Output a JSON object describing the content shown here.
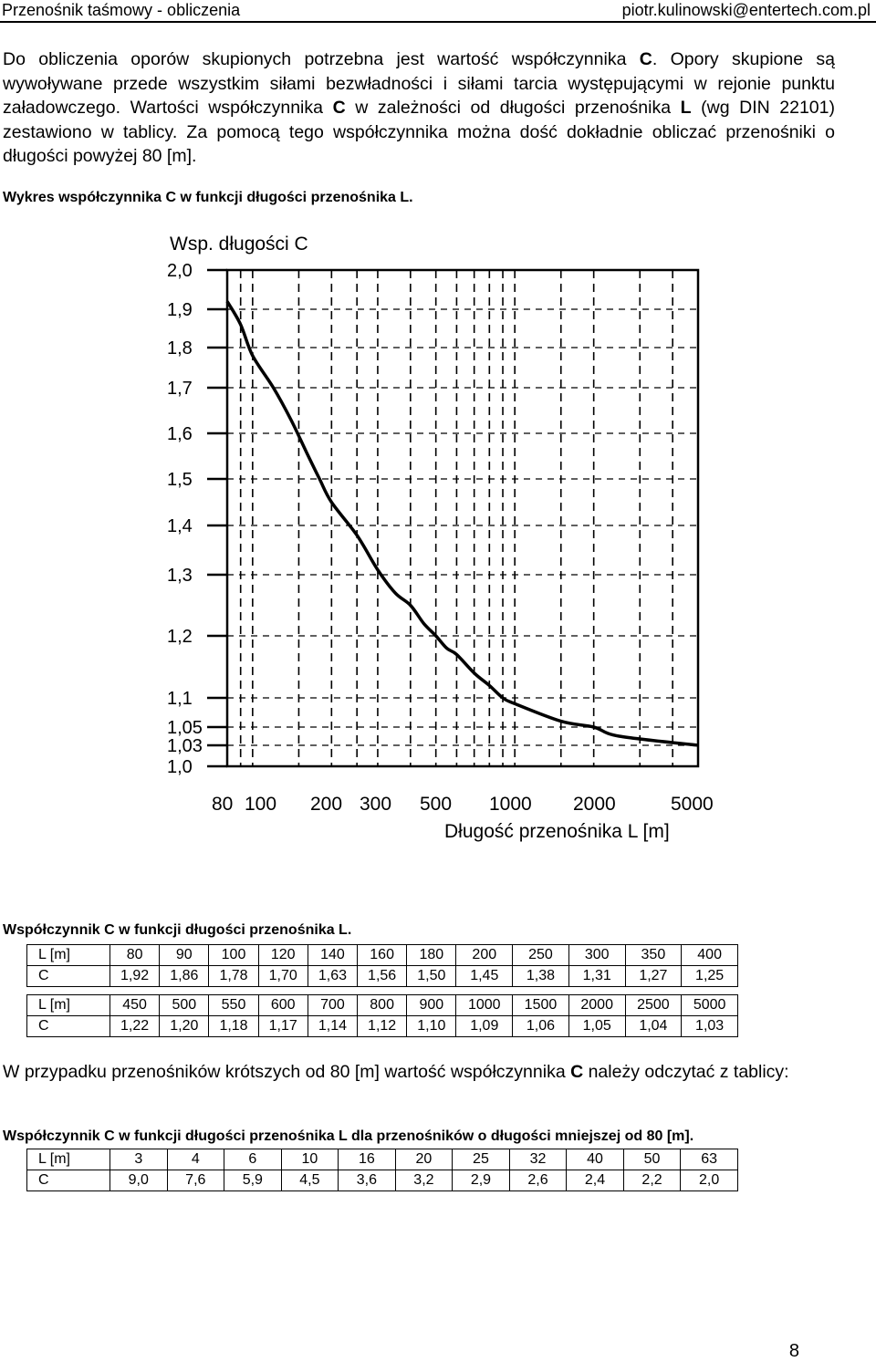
{
  "header": {
    "left": "Przenośnik taśmowy - obliczenia",
    "right": "piotr.kulinowski@entertech.com.pl"
  },
  "intro": {
    "s1": "Do obliczenia oporów skupionych potrzebna jest wartość współczynnika ",
    "c1": "C",
    "s2": ". Opory skupione są wywoływane przede wszystkim siłami bezwładności i siłami tarcia występującymi w rejonie punktu załadowczego. Wartości współczynnika ",
    "c2": "C",
    "s3": " w zależności od długości przenośnika ",
    "l1": "L",
    "s4": " (wg DIN 22101) zestawiono w tablicy. Za pomocą tego współczynnika można dość dokładnie obliczać przenośniki o długości powyżej 80 [m]."
  },
  "chart_caption": "Wykres współczynnika C w funkcji długości przenośnika L.",
  "chart_data": {
    "type": "line",
    "ylabel": "Wsp. długości C",
    "xlabel": "Długość przenośnika L [m]",
    "x_scale": "log",
    "xlim": [
      80,
      5000
    ],
    "ylim": [
      1.0,
      2.0
    ],
    "y_ticks": [
      "2,0",
      "1,9",
      "1,8",
      "1,7",
      "1,6",
      "1,5",
      "1,4",
      "1,3",
      "1,2",
      "1,1",
      "1,05",
      "1,03",
      "1,0"
    ],
    "y_tick_values": [
      2.0,
      1.9,
      1.8,
      1.7,
      1.6,
      1.5,
      1.4,
      1.3,
      1.2,
      1.1,
      1.05,
      1.03,
      1.0
    ],
    "x_ticks": [
      "80",
      "100",
      "200",
      "300",
      "500",
      "1000",
      "2000",
      "5000"
    ],
    "x_tick_values": [
      80,
      100,
      200,
      300,
      500,
      1000,
      2000,
      5000
    ],
    "grid": "dashed",
    "x": [
      80,
      90,
      100,
      120,
      140,
      160,
      180,
      200,
      250,
      300,
      350,
      400,
      450,
      500,
      550,
      600,
      700,
      800,
      900,
      1000,
      1500,
      2000,
      2500,
      5000
    ],
    "y": [
      1.92,
      1.86,
      1.78,
      1.7,
      1.63,
      1.56,
      1.5,
      1.45,
      1.38,
      1.31,
      1.27,
      1.25,
      1.22,
      1.2,
      1.18,
      1.17,
      1.14,
      1.12,
      1.1,
      1.09,
      1.06,
      1.05,
      1.04,
      1.03
    ]
  },
  "table1": {
    "caption": "Współczynnik C w funkcji długości przenośnika L.",
    "rows": [
      [
        "L [m]",
        "80",
        "90",
        "100",
        "120",
        "140",
        "160",
        "180",
        "200",
        "250",
        "300",
        "350",
        "400"
      ],
      [
        "C",
        "1,92",
        "1,86",
        "1,78",
        "1,70",
        "1,63",
        "1,56",
        "1,50",
        "1,45",
        "1,38",
        "1,31",
        "1,27",
        "1,25"
      ],
      [
        "L [m]",
        "450",
        "500",
        "550",
        "600",
        "700",
        "800",
        "900",
        "1000",
        "1500",
        "2000",
        "2500",
        "5000"
      ],
      [
        "C",
        "1,22",
        "1,20",
        "1,18",
        "1,17",
        "1,14",
        "1,12",
        "1,10",
        "1,09",
        "1,06",
        "1,05",
        "1,04",
        "1,03"
      ]
    ]
  },
  "para2": {
    "s1": "W przypadku przenośników krótszych od 80 [m] wartość współczynnika ",
    "c1": "C",
    "s2": " należy odczytać z tablicy:"
  },
  "table2": {
    "caption": "Współczynnik C w funkcji długości przenośnika L dla przenośników o długości mniejszej od 80 [m].",
    "rows": [
      [
        "L [m]",
        "3",
        "4",
        "6",
        "10",
        "16",
        "20",
        "25",
        "32",
        "40",
        "50",
        "63"
      ],
      [
        "C",
        "9,0",
        "7,6",
        "5,9",
        "4,5",
        "3,6",
        "3,2",
        "2,9",
        "2,6",
        "2,4",
        "2,2",
        "2,0"
      ]
    ]
  },
  "page_number": "8"
}
